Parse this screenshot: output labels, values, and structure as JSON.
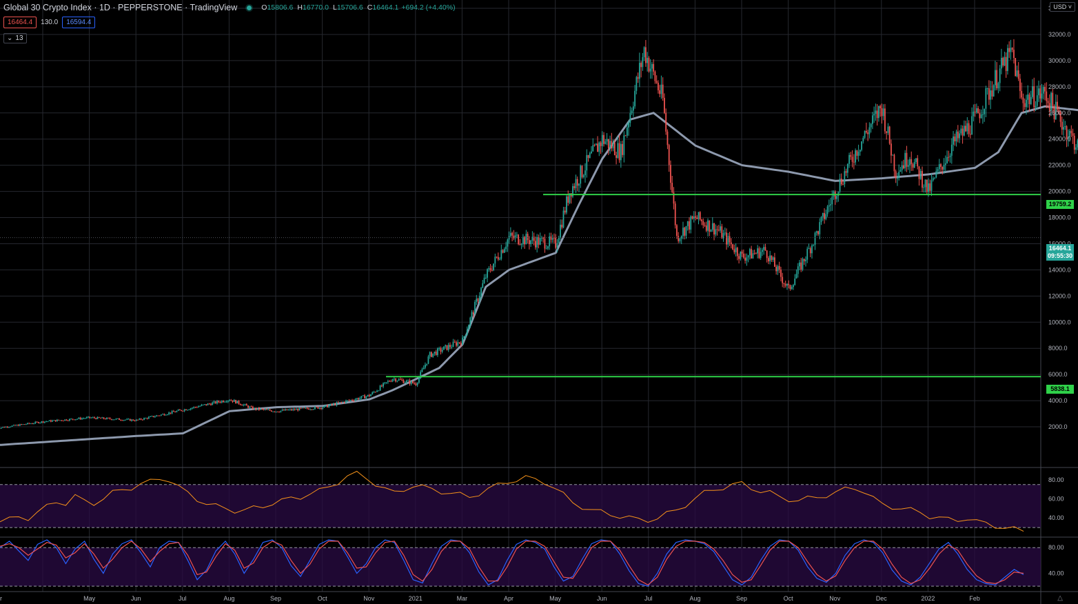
{
  "header": {
    "title": "Global 30 Crypto Index · 1D · PEPPERSTONE · TradingView",
    "ohlc": [
      {
        "k": "O",
        "v": "15806.6"
      },
      {
        "k": "H",
        "v": "16770.0"
      },
      {
        "k": "L",
        "v": "15706.6"
      },
      {
        "k": "C",
        "v": "16464.1"
      }
    ],
    "change": "+694.2 (+4.40%)",
    "bid": "16464.4",
    "spread": "130.0",
    "ask": "16594.4",
    "indicators_collapsed": "13",
    "currency": "USD"
  },
  "price_tags": {
    "level_upper": "19759.2",
    "level_lower": "5838.1",
    "last_price": "16464.1",
    "countdown": "09:55:30"
  },
  "colors": {
    "up": "#26a69a",
    "down": "#ef5350",
    "ma": "#8d99ad",
    "support_lines": "#2fd149",
    "rsi": "#f7931a",
    "stoch_k": "#2962ff",
    "stoch_d": "#ef5350",
    "band": "#2a0b44"
  },
  "chart_data": [
    {
      "type": "candlestick",
      "ylim": [
        0,
        34000
      ],
      "y_ticks": [
        "2000.0",
        "4000.0",
        "6000.0",
        "8000.0",
        "10000.0",
        "12000.0",
        "14000.0",
        "16000.0",
        "18000.0",
        "20000.0",
        "22000.0",
        "24000.0",
        "26000.0",
        "28000.0",
        "30000.0",
        "32000.0",
        "34000.0"
      ],
      "x_tick_labels": [
        "r",
        "May",
        "Jun",
        "Jul",
        "Aug",
        "Sep",
        "Oct",
        "Nov",
        "2021",
        "Mar",
        "Apr",
        "May",
        "Jun",
        "Jul",
        "Aug",
        "Sep",
        "Oct",
        "Nov",
        "Dec",
        "2022",
        "Feb"
      ],
      "price_path": [
        {
          "month": 0,
          "close": 1900
        },
        {
          "month": 1,
          "close": 2400
        },
        {
          "month": 2,
          "close": 2700
        },
        {
          "month": 3,
          "close": 2500
        },
        {
          "month": 4,
          "close": 3300
        },
        {
          "month": 5,
          "close": 4100
        },
        {
          "month": 5.5,
          "close": 3400
        },
        {
          "month": 6,
          "close": 3200
        },
        {
          "month": 7,
          "close": 3500
        },
        {
          "month": 8,
          "close": 4400
        },
        {
          "month": 8.5,
          "close": 5700
        },
        {
          "month": 9,
          "close": 5300
        },
        {
          "month": 9.3,
          "close": 7500
        },
        {
          "month": 10,
          "close": 8600
        },
        {
          "month": 10.5,
          "close": 13500
        },
        {
          "month": 11,
          "close": 16500
        },
        {
          "month": 12,
          "close": 16000
        },
        {
          "month": 12.3,
          "close": 20000
        },
        {
          "month": 13,
          "close": 24000
        },
        {
          "month": 13.4,
          "close": 23000
        },
        {
          "month": 13.9,
          "close": 30800
        },
        {
          "month": 14.3,
          "close": 27000
        },
        {
          "month": 14.6,
          "close": 16500
        },
        {
          "month": 15,
          "close": 18000
        },
        {
          "month": 15.5,
          "close": 17000
        },
        {
          "month": 16,
          "close": 15000
        },
        {
          "month": 16.5,
          "close": 15500
        },
        {
          "month": 17,
          "close": 12500
        },
        {
          "month": 17.5,
          "close": 16000
        },
        {
          "month": 18,
          "close": 20000
        },
        {
          "month": 18.5,
          "close": 23500
        },
        {
          "month": 19,
          "close": 26500
        },
        {
          "month": 19.3,
          "close": 21500
        },
        {
          "month": 19.6,
          "close": 22800
        },
        {
          "month": 20,
          "close": 20000
        },
        {
          "month": 20.5,
          "close": 23500
        },
        {
          "month": 21,
          "close": 25500
        },
        {
          "month": 21.5,
          "close": 29000
        },
        {
          "month": 21.8,
          "close": 30600
        },
        {
          "month": 22,
          "close": 27000
        },
        {
          "month": 22.5,
          "close": 27500
        },
        {
          "month": 23,
          "close": 24500
        },
        {
          "month": 23.5,
          "close": 22000
        },
        {
          "month": 24,
          "close": 25000
        },
        {
          "month": 24.5,
          "close": 22000
        },
        {
          "month": 25,
          "close": 20500
        },
        {
          "month": 25.2,
          "close": 16464
        }
      ],
      "moving_average": [
        {
          "month": 0,
          "value": 600
        },
        {
          "month": 3,
          "value": 1300
        },
        {
          "month": 4,
          "value": 1500
        },
        {
          "month": 5,
          "value": 3200
        },
        {
          "month": 6,
          "value": 3500
        },
        {
          "month": 7,
          "value": 3600
        },
        {
          "month": 8,
          "value": 4100
        },
        {
          "month": 8.5,
          "value": 4800
        },
        {
          "month": 9.5,
          "value": 6500
        },
        {
          "month": 10,
          "value": 8300
        },
        {
          "month": 10.5,
          "value": 12700
        },
        {
          "month": 11,
          "value": 14000
        },
        {
          "month": 12,
          "value": 15300
        },
        {
          "month": 12.5,
          "value": 19000
        },
        {
          "month": 13,
          "value": 22500
        },
        {
          "month": 13.6,
          "value": 25500
        },
        {
          "month": 14.1,
          "value": 26000
        },
        {
          "month": 15,
          "value": 23500
        },
        {
          "month": 16,
          "value": 22000
        },
        {
          "month": 17,
          "value": 21500
        },
        {
          "month": 18,
          "value": 20800
        },
        {
          "month": 19,
          "value": 21000
        },
        {
          "month": 20,
          "value": 21300
        },
        {
          "month": 21,
          "value": 21800
        },
        {
          "month": 21.5,
          "value": 23000
        },
        {
          "month": 22,
          "value": 26000
        },
        {
          "month": 22.5,
          "value": 26500
        },
        {
          "month": 23.5,
          "value": 26100
        },
        {
          "month": 24.5,
          "value": 25800
        },
        {
          "month": 25.3,
          "value": 25300
        }
      ],
      "horizontal_levels": [
        19759.2,
        5838.1
      ],
      "last_close": 16464.1
    },
    {
      "type": "line",
      "name": "RSI",
      "ylim": [
        25,
        90
      ],
      "y_ticks": [
        "40.00",
        "60.00",
        "80.00"
      ],
      "band": [
        30,
        75
      ],
      "values": [
        36,
        38,
        42,
        40,
        45,
        52,
        58,
        55,
        62,
        58,
        56,
        60,
        66,
        70,
        72,
        75,
        78,
        82,
        80,
        72,
        66,
        60,
        55,
        52,
        50,
        48,
        48,
        50,
        52,
        56,
        58,
        60,
        62,
        66,
        68,
        72,
        78,
        84,
        86,
        82,
        76,
        70,
        66,
        70,
        74,
        72,
        70,
        68,
        66,
        64,
        62,
        66,
        70,
        74,
        78,
        80,
        82,
        80,
        78,
        72,
        64,
        56,
        52,
        48,
        46,
        44,
        42,
        40,
        38,
        38,
        40,
        44,
        48,
        54,
        60,
        66,
        70,
        72,
        74,
        76,
        72,
        68,
        66,
        62,
        60,
        58,
        60,
        62,
        64,
        66,
        70,
        72,
        68,
        60,
        54,
        52,
        50,
        48,
        46,
        42,
        40,
        38,
        38,
        40,
        36,
        34,
        32,
        30,
        28,
        26
      ]
    },
    {
      "type": "line",
      "name": "Stochastic RSI",
      "ylim": [
        18,
        92
      ],
      "y_ticks": [
        "40.00",
        "80.00"
      ],
      "band": [
        20,
        80
      ],
      "k": [
        80,
        90,
        75,
        60,
        85,
        92,
        80,
        55,
        78,
        90,
        62,
        40,
        70,
        86,
        92,
        72,
        50,
        80,
        90,
        88,
        60,
        30,
        45,
        75,
        90,
        70,
        40,
        62,
        88,
        92,
        80,
        52,
        35,
        60,
        85,
        92,
        90,
        66,
        40,
        55,
        80,
        92,
        88,
        60,
        30,
        25,
        55,
        82,
        92,
        90,
        72,
        42,
        22,
        30,
        60,
        85,
        92,
        88,
        78,
        50,
        28,
        35,
        62,
        86,
        92,
        90,
        70,
        44,
        24,
        20,
        40,
        70,
        88,
        92,
        90,
        86,
        74,
        52,
        30,
        22,
        34,
        60,
        82,
        92,
        90,
        76,
        50,
        32,
        26,
        40,
        68,
        86,
        92,
        88,
        72,
        45,
        28,
        22,
        34,
        56,
        78,
        88,
        70,
        46,
        30,
        24,
        22,
        34,
        46,
        38
      ],
      "d": [
        82,
        86,
        80,
        68,
        78,
        88,
        84,
        64,
        72,
        86,
        70,
        48,
        62,
        80,
        90,
        78,
        58,
        74,
        86,
        88,
        68,
        38,
        42,
        66,
        86,
        76,
        48,
        56,
        80,
        90,
        84,
        60,
        40,
        54,
        78,
        90,
        90,
        72,
        48,
        50,
        72,
        88,
        90,
        68,
        38,
        28,
        46,
        74,
        90,
        90,
        78,
        50,
        28,
        28,
        50,
        78,
        90,
        90,
        82,
        58,
        34,
        32,
        54,
        80,
        90,
        90,
        76,
        52,
        30,
        22,
        34,
        62,
        82,
        90,
        90,
        88,
        78,
        60,
        38,
        26,
        30,
        52,
        76,
        90,
        90,
        80,
        58,
        38,
        28,
        36,
        60,
        80,
        90,
        90,
        78,
        54,
        34,
        24,
        30,
        48,
        70,
        84,
        76,
        54,
        36,
        26,
        24,
        30,
        42,
        40
      ]
    }
  ]
}
